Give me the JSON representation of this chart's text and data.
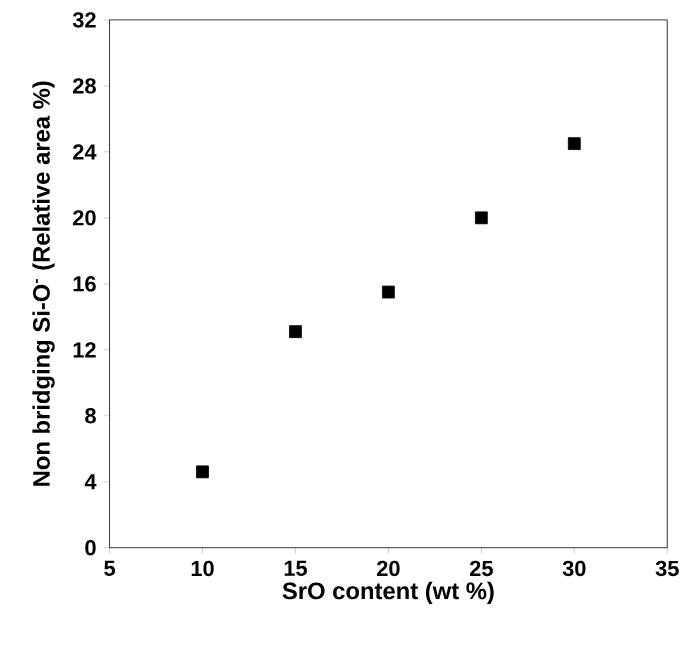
{
  "chart_data": {
    "type": "scatter",
    "xlabel": "SrO content (wt %)",
    "ylabel": "Non bridging Si-O$^{-}$ (Relative area %)",
    "x": [
      10,
      15,
      20,
      25,
      30
    ],
    "values": [
      4.6,
      13.1,
      15.5,
      20.0,
      24.5
    ],
    "color": "#000000",
    "marker": "square",
    "xlim": [
      5,
      35
    ],
    "xticks": [
      5,
      10,
      15,
      20,
      25,
      30,
      35
    ],
    "ylim": [
      0,
      32
    ],
    "yticks": [
      0,
      4,
      8,
      12,
      16,
      20,
      24,
      28,
      32
    ]
  }
}
